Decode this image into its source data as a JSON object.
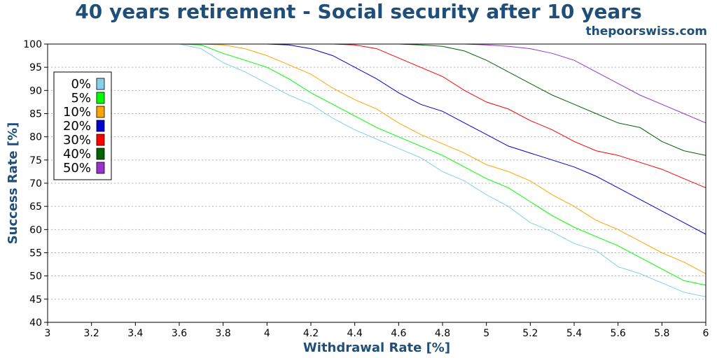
{
  "header": {
    "title": "40 years retirement - Social security after 10 years",
    "watermark": "thepoorswiss.com"
  },
  "chart_data": {
    "type": "line",
    "title": "40 years retirement - Social security after 10 years",
    "xlabel": "Withdrawal Rate [%]",
    "ylabel": "Success Rate [%]",
    "xlim": [
      3,
      6
    ],
    "ylim": [
      40,
      100
    ],
    "xticks": [
      3,
      3.2,
      3.4,
      3.6,
      3.8,
      4,
      4.2,
      4.4,
      4.6,
      4.8,
      5,
      5.2,
      5.4,
      5.6,
      5.8,
      6
    ],
    "xtick_labels": [
      "3",
      "3.2",
      "3.4",
      "3.6",
      "3.8",
      "4",
      "4.2",
      "4.4",
      "4.6",
      "4.8",
      "5",
      "5.2",
      "5.4",
      "5.6",
      "5.8",
      "6"
    ],
    "yticks": [
      40,
      45,
      50,
      55,
      60,
      65,
      70,
      75,
      80,
      85,
      90,
      95,
      100
    ],
    "ytick_labels": [
      "40",
      "45",
      "50",
      "55",
      "60",
      "65",
      "70",
      "75",
      "80",
      "85",
      "90",
      "95",
      "100"
    ],
    "grid": "horizontal-dotted",
    "legend_position": "upper-left",
    "x": [
      3.0,
      3.1,
      3.2,
      3.3,
      3.4,
      3.5,
      3.6,
      3.7,
      3.8,
      3.9,
      4.0,
      4.1,
      4.2,
      4.3,
      4.4,
      4.5,
      4.6,
      4.7,
      4.8,
      4.9,
      5.0,
      5.1,
      5.2,
      5.3,
      5.4,
      5.5,
      5.6,
      5.7,
      5.8,
      5.9,
      6.0
    ],
    "series": [
      {
        "name": "0%",
        "color": "#87ceeb",
        "values": [
          100,
          100,
          100,
          100,
          100,
          100,
          100,
          99,
          96,
          94,
          91.5,
          89,
          87,
          84,
          81.5,
          79.5,
          77.5,
          75.5,
          72.5,
          70.5,
          67.5,
          65,
          61.5,
          59.5,
          57,
          55.5,
          52,
          50.5,
          48.5,
          46.5,
          45.5
        ]
      },
      {
        "name": "5%",
        "color": "#00ff00",
        "values": [
          100,
          100,
          100,
          100,
          100,
          100,
          100,
          99.8,
          98,
          96.5,
          95,
          92.5,
          89.5,
          87,
          84.5,
          82,
          80,
          78,
          76,
          73.5,
          71,
          69,
          66,
          63,
          60.5,
          58.5,
          56.5,
          54,
          51.5,
          49,
          48
        ]
      },
      {
        "name": "10%",
        "color": "#ffa500",
        "values": [
          100,
          100,
          100,
          100,
          100,
          100,
          100,
          100,
          99.8,
          99,
          97.5,
          95.5,
          93.5,
          90.5,
          88,
          86,
          83,
          80.5,
          78.5,
          76.5,
          74,
          72.5,
          70.5,
          67.5,
          65,
          62,
          60,
          57.5,
          55,
          53,
          50.5
        ]
      },
      {
        "name": "20%",
        "color": "#0000cd",
        "values": [
          100,
          100,
          100,
          100,
          100,
          100,
          100,
          100,
          100,
          100,
          100,
          99.8,
          99,
          97.5,
          95,
          92.5,
          89.5,
          87,
          85.5,
          83,
          80.5,
          78,
          76.5,
          75,
          73.5,
          71.5,
          69,
          66.5,
          64,
          61.5,
          59
        ]
      },
      {
        "name": "30%",
        "color": "#ff0000",
        "values": [
          100,
          100,
          100,
          100,
          100,
          100,
          100,
          100,
          100,
          100,
          100,
          100,
          100,
          100,
          99.8,
          99,
          97,
          95,
          93,
          90,
          87.5,
          86,
          83.5,
          81.5,
          79,
          77,
          76,
          74.5,
          73,
          71,
          69
        ]
      },
      {
        "name": "40%",
        "color": "#006400",
        "values": [
          100,
          100,
          100,
          100,
          100,
          100,
          100,
          100,
          100,
          100,
          100,
          100,
          100,
          100,
          100,
          100,
          100,
          99.8,
          99.5,
          98.5,
          96.5,
          94,
          91.5,
          89,
          87,
          85,
          83,
          82,
          79,
          77,
          76
        ]
      },
      {
        "name": "50%",
        "color": "#9932cc",
        "values": [
          100,
          100,
          100,
          100,
          100,
          100,
          100,
          100,
          100,
          100,
          100,
          100,
          100,
          100,
          100,
          100,
          100,
          100,
          100,
          100,
          99.8,
          99.5,
          99,
          98,
          96.5,
          94,
          91.5,
          89,
          87,
          85,
          83
        ]
      }
    ]
  }
}
